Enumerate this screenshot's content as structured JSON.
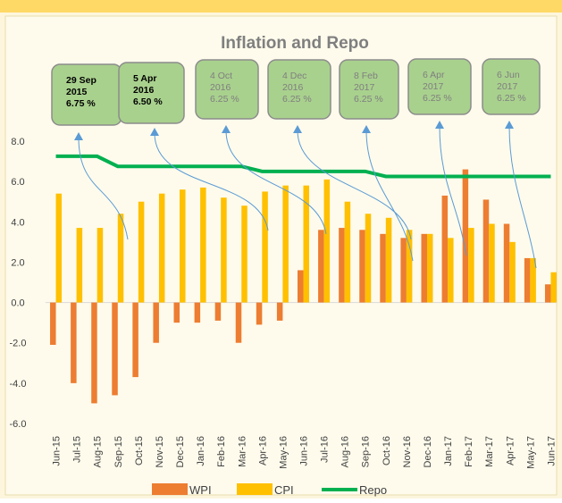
{
  "chart_data": {
    "type": "bar",
    "title": "Inflation and Repo",
    "categories": [
      "Jun-15",
      "Jul-15",
      "Aug-15",
      "Sep-15",
      "Oct-15",
      "Nov-15",
      "Dec-15",
      "Jan-16",
      "Feb-16",
      "Mar-16",
      "Apr-16",
      "May-16",
      "Jun-16",
      "Jul-16",
      "Aug-16",
      "Sep-16",
      "Oct-16",
      "Nov-16",
      "Dec-16",
      "Jan-17",
      "Feb-17",
      "Mar-17",
      "Apr-17",
      "May-17",
      "Jun-17"
    ],
    "series": [
      {
        "name": "WPI",
        "type": "bar",
        "color": "#ed7d31",
        "values": [
          -2.1,
          -4.0,
          -5.0,
          -4.6,
          -3.7,
          -2.0,
          -1.0,
          -1.0,
          -0.9,
          -2.0,
          -1.1,
          -0.9,
          1.6,
          3.6,
          3.7,
          3.6,
          3.4,
          3.2,
          3.4,
          5.3,
          6.6,
          5.1,
          3.9,
          2.2,
          0.9
        ]
      },
      {
        "name": "CPI",
        "type": "bar",
        "color": "#ffc000",
        "values": [
          5.4,
          3.7,
          3.7,
          4.4,
          5.0,
          5.4,
          5.6,
          5.7,
          5.2,
          4.8,
          5.5,
          5.8,
          5.8,
          6.1,
          5.0,
          4.4,
          4.2,
          3.6,
          3.4,
          3.2,
          3.7,
          3.9,
          3.0,
          2.2,
          1.5
        ]
      },
      {
        "name": "Repo",
        "type": "line",
        "color": "#00b050",
        "values": [
          7.25,
          7.25,
          7.25,
          6.75,
          6.75,
          6.75,
          6.75,
          6.75,
          6.75,
          6.75,
          6.5,
          6.5,
          6.5,
          6.5,
          6.5,
          6.5,
          6.25,
          6.25,
          6.25,
          6.25,
          6.25,
          6.25,
          6.25,
          6.25,
          6.25
        ]
      }
    ],
    "ylim": [
      -6,
      8
    ],
    "yticks": [
      {
        "value": -6,
        "label": "-6.0"
      },
      {
        "value": -4,
        "label": "-4.0"
      },
      {
        "value": -2,
        "label": "-2.0"
      },
      {
        "value": 0,
        "label": "0.0"
      },
      {
        "value": 2,
        "label": "2.0"
      },
      {
        "value": 4,
        "label": "4.0"
      },
      {
        "value": 6,
        "label": "6.0"
      },
      {
        "value": 8,
        "label": "8.0"
      }
    ],
    "annotations": [
      [
        "29 Sep",
        "2015",
        "6.75 %"
      ],
      [
        "5 Apr",
        "2016",
        "6.50 %"
      ],
      [
        "4 Oct",
        "2016",
        "6.25 %"
      ],
      [
        "4 Dec",
        "2016",
        "6.25 %"
      ],
      [
        "8 Feb",
        "2017",
        "6.25 %"
      ],
      [
        "6 Apr",
        "2017",
        "6.25 %"
      ],
      [
        "6 Jun",
        "2017",
        "6.25 %"
      ]
    ],
    "legend": "bottom"
  }
}
